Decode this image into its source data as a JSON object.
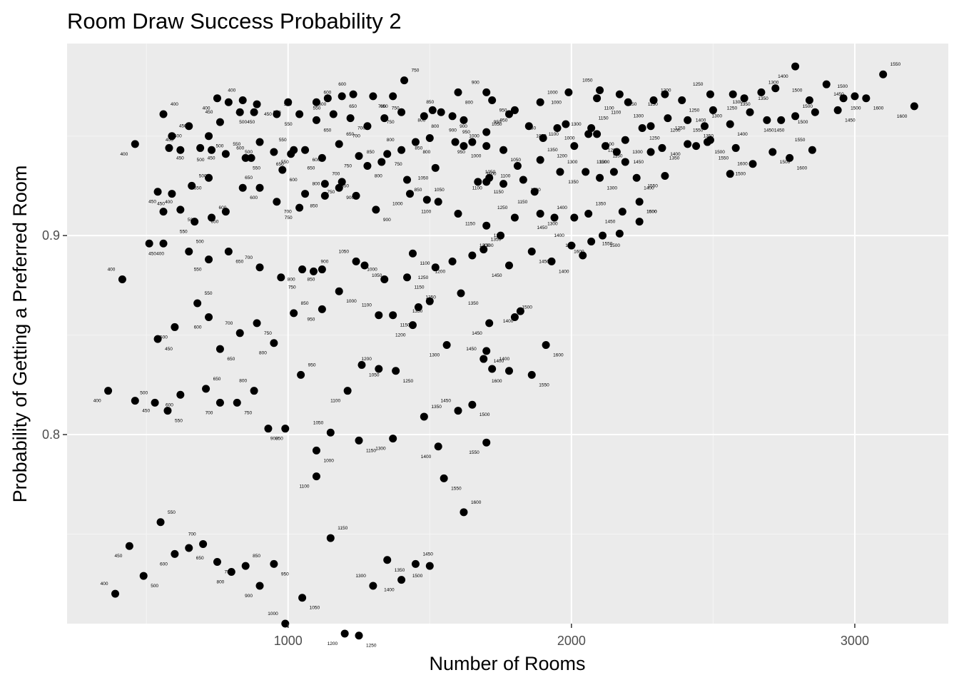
{
  "colors": {
    "panel": "#ebebeb",
    "grid_major": "#ffffff",
    "grid_minor": "#f5f5f5",
    "point": "#000000",
    "tick_text": "#4d4d4d"
  },
  "chart_data": {
    "type": "scatter",
    "title": "Room Draw Success Probability 2",
    "xlabel": "Number of Rooms",
    "ylabel": "Probability of Getting a Preferred Room",
    "xlim": [
      220,
      3330
    ],
    "ylim": [
      0.705,
      0.9965
    ],
    "xticks": [
      1000,
      2000,
      3000
    ],
    "xtick_labels": [
      "1000",
      "2000",
      "3000"
    ],
    "yticks": [
      0.8,
      0.9
    ],
    "ytick_labels": [
      "0.8",
      "0.9"
    ],
    "grid": true,
    "legend": "none",
    "points": [
      [
        390,
        0.72,
        "400"
      ],
      [
        490,
        0.729,
        "500"
      ],
      [
        440,
        0.744,
        "450"
      ],
      [
        550,
        0.756,
        "550"
      ],
      [
        600,
        0.74,
        "600"
      ],
      [
        650,
        0.743,
        "650"
      ],
      [
        700,
        0.745,
        "700"
      ],
      [
        750,
        0.736,
        "750"
      ],
      [
        800,
        0.731,
        "800"
      ],
      [
        850,
        0.734,
        "850"
      ],
      [
        900,
        0.724,
        "900"
      ],
      [
        950,
        0.735,
        "950"
      ],
      [
        990,
        0.705,
        "1000"
      ],
      [
        1050,
        0.718,
        "1050"
      ],
      [
        1100,
        0.779,
        "1100"
      ],
      [
        1150,
        0.748,
        "1150"
      ],
      [
        1200,
        0.7,
        "1200"
      ],
      [
        1250,
        0.699,
        "1250"
      ],
      [
        1300,
        0.724,
        "1300"
      ],
      [
        1350,
        0.737,
        "1350"
      ],
      [
        1400,
        0.727,
        "1400"
      ],
      [
        1450,
        0.735,
        "1450"
      ],
      [
        1500,
        0.734,
        "1500"
      ],
      [
        1100,
        0.792,
        "1000"
      ],
      [
        1150,
        0.801,
        "1050"
      ],
      [
        1250,
        0.797,
        "1150"
      ],
      [
        1370,
        0.798,
        "1300"
      ],
      [
        1480,
        0.809,
        "1350"
      ],
      [
        1530,
        0.794,
        "1400"
      ],
      [
        1550,
        0.778,
        "1550"
      ],
      [
        1600,
        0.812,
        "1450"
      ],
      [
        1650,
        0.815,
        "1500"
      ],
      [
        1700,
        0.796,
        "1550"
      ],
      [
        1620,
        0.761,
        "1600"
      ],
      [
        365,
        0.822,
        "400"
      ],
      [
        460,
        0.817,
        "450"
      ],
      [
        530,
        0.816,
        "500"
      ],
      [
        575,
        0.812,
        "550"
      ],
      [
        620,
        0.82,
        "600"
      ],
      [
        710,
        0.823,
        "650"
      ],
      [
        760,
        0.816,
        "700"
      ],
      [
        820,
        0.816,
        "750"
      ],
      [
        880,
        0.822,
        "800"
      ],
      [
        930,
        0.803,
        "850"
      ],
      [
        990,
        0.803,
        "900"
      ],
      [
        1045,
        0.83,
        "950"
      ],
      [
        1210,
        0.822,
        "1100"
      ],
      [
        1260,
        0.835,
        "1050"
      ],
      [
        1320,
        0.833,
        "1200"
      ],
      [
        1380,
        0.832,
        "1250"
      ],
      [
        1560,
        0.845,
        "1300"
      ],
      [
        1720,
        0.833,
        "1400"
      ],
      [
        1780,
        0.832,
        "1600"
      ],
      [
        1860,
        0.83,
        "1550"
      ],
      [
        1690,
        0.838,
        "1450"
      ],
      [
        1910,
        0.845,
        "1600"
      ],
      [
        1710,
        0.856,
        "1450"
      ],
      [
        1800,
        0.859,
        "1500"
      ],
      [
        1820,
        0.862,
        "1400"
      ],
      [
        1700,
        0.842,
        "1400"
      ],
      [
        415,
        0.878,
        "400"
      ],
      [
        540,
        0.848,
        "450"
      ],
      [
        600,
        0.854,
        "500"
      ],
      [
        680,
        0.866,
        "550"
      ],
      [
        720,
        0.859,
        "600"
      ],
      [
        760,
        0.843,
        "650"
      ],
      [
        830,
        0.851,
        "700"
      ],
      [
        890,
        0.856,
        "750"
      ],
      [
        950,
        0.846,
        "800"
      ],
      [
        1020,
        0.861,
        "850"
      ],
      [
        1120,
        0.863,
        "950"
      ],
      [
        1180,
        0.872,
        "1000"
      ],
      [
        1320,
        0.86,
        "1100"
      ],
      [
        1370,
        0.86,
        "1150"
      ],
      [
        1440,
        0.855,
        "1200"
      ],
      [
        1460,
        0.864,
        "1250"
      ],
      [
        1500,
        0.867,
        "1350"
      ],
      [
        1610,
        0.871,
        "1350"
      ],
      [
        1340,
        0.878,
        "1000"
      ],
      [
        1270,
        0.885,
        "1050"
      ],
      [
        1120,
        0.883,
        "850"
      ],
      [
        1090,
        0.882,
        "900"
      ],
      [
        1050,
        0.883,
        "800"
      ],
      [
        975,
        0.879,
        "750"
      ],
      [
        900,
        0.884,
        "700"
      ],
      [
        790,
        0.892,
        "650"
      ],
      [
        720,
        0.888,
        "550"
      ],
      [
        650,
        0.892,
        "500"
      ],
      [
        560,
        0.896,
        "450"
      ],
      [
        510,
        0.896,
        "400"
      ],
      [
        1240,
        0.887,
        "1050"
      ],
      [
        1420,
        0.879,
        "1150"
      ],
      [
        1520,
        0.884,
        "1250"
      ],
      [
        1650,
        0.89,
        "1300"
      ],
      [
        1780,
        0.885,
        "1450"
      ],
      [
        1930,
        0.887,
        "1400"
      ],
      [
        2040,
        0.89,
        "1550"
      ],
      [
        1440,
        0.891,
        "1100"
      ],
      [
        1580,
        0.887,
        "1200"
      ],
      [
        1690,
        0.893,
        "1350"
      ],
      [
        1750,
        0.9,
        "1300"
      ],
      [
        1860,
        0.892,
        "1450"
      ],
      [
        2000,
        0.895,
        "1400"
      ],
      [
        2110,
        0.9,
        "1500"
      ],
      [
        2170,
        0.901,
        "1550"
      ],
      [
        2240,
        0.907,
        "1600"
      ],
      [
        2070,
        0.897,
        "1600"
      ],
      [
        1700,
        0.905,
        "1200"
      ],
      [
        1800,
        0.909,
        "1250"
      ],
      [
        1890,
        0.911,
        "1300"
      ],
      [
        1940,
        0.909,
        "1450"
      ],
      [
        2060,
        0.911,
        "1350"
      ],
      [
        2180,
        0.912,
        "1450"
      ],
      [
        2240,
        0.917,
        "1500"
      ],
      [
        2010,
        0.909,
        "1400"
      ],
      [
        1600,
        0.911,
        "1150"
      ],
      [
        1530,
        0.917,
        "1100"
      ],
      [
        1490,
        0.918,
        "1050"
      ],
      [
        1430,
        0.921,
        "1000"
      ],
      [
        1310,
        0.913,
        "900"
      ],
      [
        1240,
        0.92,
        "850"
      ],
      [
        1180,
        0.924,
        "900"
      ],
      [
        1130,
        0.92,
        "850"
      ],
      [
        1060,
        0.921,
        "800"
      ],
      [
        1040,
        0.914,
        "750"
      ],
      [
        960,
        0.917,
        "700"
      ],
      [
        900,
        0.924,
        "650"
      ],
      [
        840,
        0.924,
        "600"
      ],
      [
        780,
        0.912,
        "650"
      ],
      [
        730,
        0.909,
        "600"
      ],
      [
        670,
        0.907,
        "550"
      ],
      [
        620,
        0.913,
        "500"
      ],
      [
        560,
        0.912,
        "450"
      ],
      [
        540,
        0.922,
        "400"
      ],
      [
        590,
        0.921,
        "450"
      ],
      [
        660,
        0.925,
        "500"
      ],
      [
        720,
        0.929,
        "550"
      ],
      [
        850,
        0.939,
        "550"
      ],
      [
        870,
        0.939,
        "600"
      ],
      [
        980,
        0.933,
        "600"
      ],
      [
        1010,
        0.941,
        "650"
      ],
      [
        1130,
        0.926,
        "700"
      ],
      [
        1190,
        0.927,
        "750"
      ],
      [
        1280,
        0.935,
        "800"
      ],
      [
        1330,
        0.937,
        "850"
      ],
      [
        1420,
        0.928,
        "850"
      ],
      [
        1520,
        0.934,
        "1050"
      ],
      [
        1670,
        0.927,
        "1050"
      ],
      [
        1710,
        0.929,
        "1100"
      ],
      [
        1700,
        0.927,
        "1150"
      ],
      [
        1760,
        0.926,
        "1100"
      ],
      [
        1830,
        0.928,
        "1200"
      ],
      [
        1870,
        0.922,
        "1150"
      ],
      [
        1960,
        0.932,
        "1300"
      ],
      [
        2050,
        0.932,
        "1350"
      ],
      [
        2100,
        0.929,
        "1300"
      ],
      [
        2150,
        0.932,
        "1350"
      ],
      [
        2230,
        0.929,
        "1400"
      ],
      [
        2330,
        0.93,
        "1550"
      ],
      [
        2560,
        0.931,
        "1600"
      ],
      [
        2640,
        0.936,
        "1500"
      ],
      [
        2770,
        0.939,
        "1600"
      ],
      [
        2850,
        0.943,
        "1550"
      ],
      [
        2710,
        0.942,
        "1500"
      ],
      [
        2580,
        0.944,
        "1550"
      ],
      [
        2440,
        0.945,
        "1350"
      ],
      [
        2410,
        0.946,
        "1400"
      ],
      [
        2480,
        0.947,
        "1500"
      ],
      [
        2490,
        0.948,
        "1550"
      ],
      [
        2320,
        0.944,
        "1350"
      ],
      [
        2280,
        0.942,
        "1450"
      ],
      [
        2190,
        0.937,
        "1300"
      ],
      [
        2160,
        0.942,
        "1200"
      ],
      [
        2120,
        0.945,
        "1150"
      ],
      [
        2060,
        0.951,
        "1300"
      ],
      [
        2090,
        0.951,
        "1100"
      ],
      [
        2010,
        0.945,
        "1200"
      ],
      [
        1890,
        0.938,
        "1350"
      ],
      [
        1810,
        0.935,
        "1100"
      ],
      [
        1760,
        0.943,
        "1050"
      ],
      [
        1700,
        0.945,
        "1000"
      ],
      [
        1620,
        0.945,
        "1000"
      ],
      [
        1650,
        0.947,
        "950"
      ],
      [
        1590,
        0.947,
        "950"
      ],
      [
        1500,
        0.949,
        "850"
      ],
      [
        1450,
        0.947,
        "800"
      ],
      [
        1400,
        0.943,
        "800"
      ],
      [
        1350,
        0.941,
        "750"
      ],
      [
        1250,
        0.94,
        "750"
      ],
      [
        1180,
        0.946,
        "650"
      ],
      [
        1120,
        0.939,
        "650"
      ],
      [
        1060,
        0.943,
        "600"
      ],
      [
        1020,
        0.943,
        "550"
      ],
      [
        950,
        0.942,
        "550"
      ],
      [
        900,
        0.947,
        "500"
      ],
      [
        780,
        0.941,
        "550"
      ],
      [
        730,
        0.943,
        "500"
      ],
      [
        690,
        0.944,
        "450"
      ],
      [
        620,
        0.943,
        "400"
      ],
      [
        580,
        0.944,
        "450"
      ],
      [
        460,
        0.946,
        "400"
      ],
      [
        590,
        0.95,
        "450"
      ],
      [
        650,
        0.955,
        "500"
      ],
      [
        720,
        0.95,
        "500"
      ],
      [
        760,
        0.957,
        "450"
      ],
      [
        830,
        0.962,
        "450"
      ],
      [
        880,
        0.962,
        "500"
      ],
      [
        960,
        0.961,
        "500"
      ],
      [
        1040,
        0.961,
        "550"
      ],
      [
        1100,
        0.958,
        "650"
      ],
      [
        1160,
        0.961,
        "600"
      ],
      [
        1220,
        0.959,
        "700"
      ],
      [
        1280,
        0.955,
        "700"
      ],
      [
        1340,
        0.959,
        "750"
      ],
      [
        1400,
        0.962,
        "750"
      ],
      [
        1480,
        0.96,
        "800"
      ],
      [
        1540,
        0.962,
        "850"
      ],
      [
        1580,
        0.96,
        "900"
      ],
      [
        1620,
        0.958,
        "900"
      ],
      [
        1700,
        0.952,
        "950"
      ],
      [
        1780,
        0.961,
        "1050"
      ],
      [
        1850,
        0.955,
        "1000"
      ],
      [
        1900,
        0.949,
        "950"
      ],
      [
        1950,
        0.954,
        "1000"
      ],
      [
        1980,
        0.956,
        "1100"
      ],
      [
        2070,
        0.954,
        "1150"
      ],
      [
        2190,
        0.948,
        "1200"
      ],
      [
        2250,
        0.954,
        "1250"
      ],
      [
        2280,
        0.955,
        "1300"
      ],
      [
        2340,
        0.959,
        "1250"
      ],
      [
        2410,
        0.958,
        "1200"
      ],
      [
        2470,
        0.955,
        "1300"
      ],
      [
        2500,
        0.963,
        "1400"
      ],
      [
        2560,
        0.956,
        "1400"
      ],
      [
        2630,
        0.962,
        "1300"
      ],
      [
        2690,
        0.958,
        "1450"
      ],
      [
        2740,
        0.958,
        "1450"
      ],
      [
        2790,
        0.96,
        "1500"
      ],
      [
        2860,
        0.962,
        "1500"
      ],
      [
        2940,
        0.963,
        "1450"
      ],
      [
        3000,
        0.97,
        "1500"
      ],
      [
        3040,
        0.969,
        "1600"
      ],
      [
        3210,
        0.965,
        "1600"
      ],
      [
        3100,
        0.981,
        "1550"
      ],
      [
        2790,
        0.985,
        "1400"
      ],
      [
        2900,
        0.976,
        "1450"
      ],
      [
        2840,
        0.968,
        "1500"
      ],
      [
        2960,
        0.969,
        "1500"
      ],
      [
        2720,
        0.974,
        "1350"
      ],
      [
        2670,
        0.972,
        "1300"
      ],
      [
        2610,
        0.969,
        "1250"
      ],
      [
        2570,
        0.971,
        "1350"
      ],
      [
        2490,
        0.971,
        "1250"
      ],
      [
        2390,
        0.968,
        "1250"
      ],
      [
        2330,
        0.971,
        "1150"
      ],
      [
        2290,
        0.968,
        "1200"
      ],
      [
        2200,
        0.967,
        "1100"
      ],
      [
        2170,
        0.971,
        "1150"
      ],
      [
        2100,
        0.973,
        "1050"
      ],
      [
        2090,
        0.969,
        "1100"
      ],
      [
        1990,
        0.972,
        "1000"
      ],
      [
        1890,
        0.967,
        "1000"
      ],
      [
        1800,
        0.963,
        "950"
      ],
      [
        1720,
        0.968,
        "950"
      ],
      [
        1700,
        0.972,
        "900"
      ],
      [
        1600,
        0.972,
        "800"
      ],
      [
        1510,
        0.963,
        "800"
      ],
      [
        1410,
        0.978,
        "750"
      ],
      [
        1370,
        0.97,
        "700"
      ],
      [
        1300,
        0.97,
        "650"
      ],
      [
        1230,
        0.971,
        "600"
      ],
      [
        1190,
        0.97,
        "650"
      ],
      [
        1140,
        0.969,
        "550"
      ],
      [
        1100,
        0.967,
        "600"
      ],
      [
        1000,
        0.967,
        "500"
      ],
      [
        890,
        0.966,
        "450"
      ],
      [
        840,
        0.968,
        "400"
      ],
      [
        790,
        0.967,
        "450"
      ],
      [
        750,
        0.969,
        "400"
      ],
      [
        560,
        0.961,
        "400"
      ]
    ]
  }
}
